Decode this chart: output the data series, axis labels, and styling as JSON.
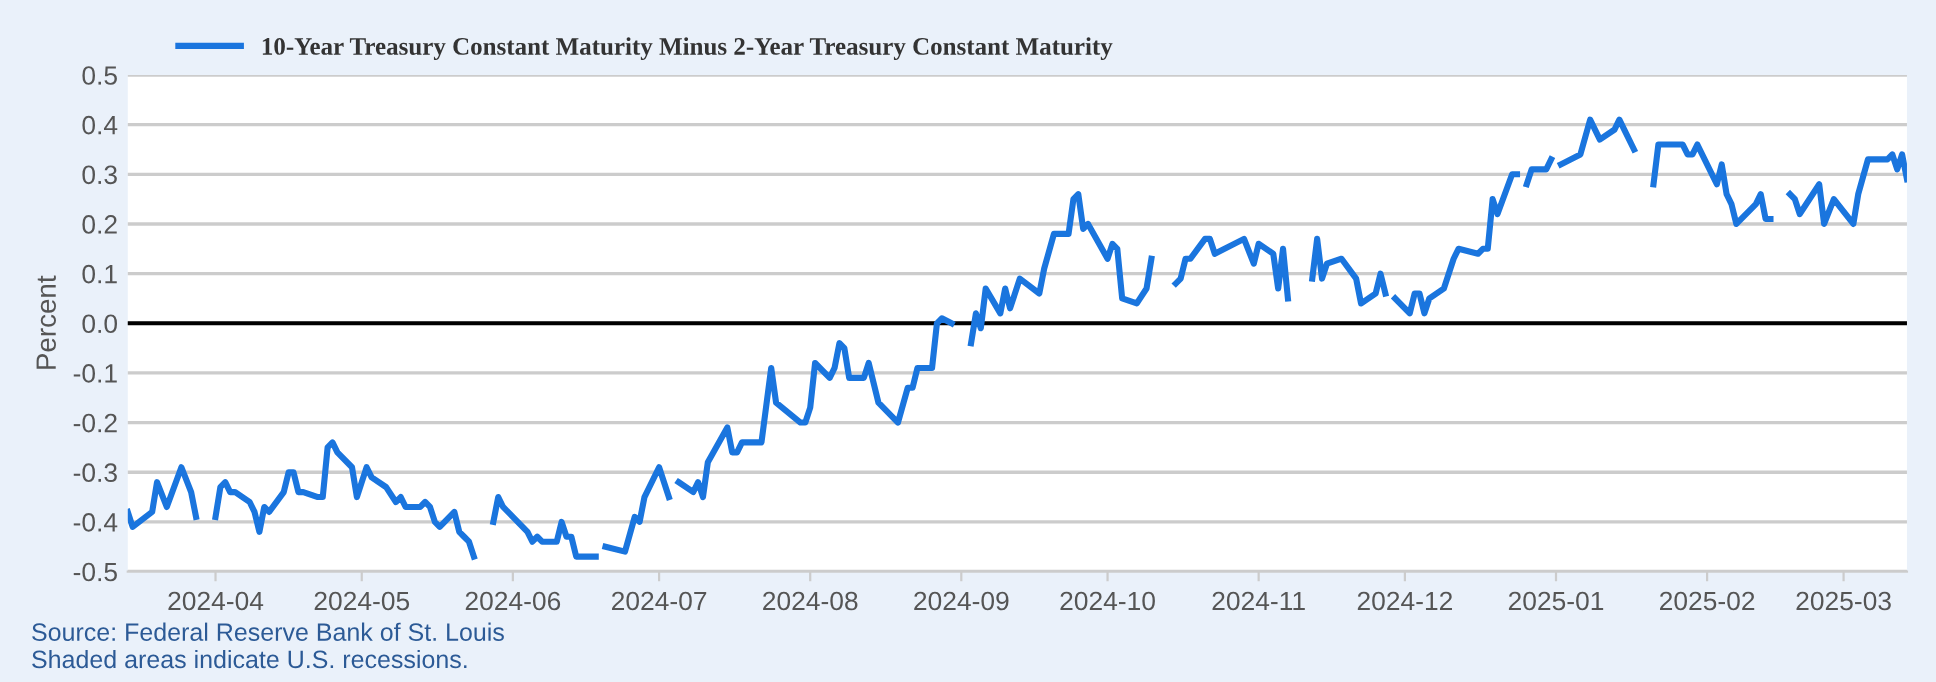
{
  "chart_data": {
    "type": "line",
    "ylabel": "Percent",
    "legend": "top left",
    "grid": "y",
    "line_style": "solid",
    "marker": "none",
    "xlim": [
      "2024-03-14",
      "2025-03-14"
    ],
    "xticks": [
      "2024-04",
      "2024-05",
      "2024-06",
      "2024-07",
      "2024-08",
      "2024-09",
      "2024-10",
      "2024-11",
      "2024-12",
      "2025-01",
      "2025-02",
      "2025-03"
    ],
    "ylim": [
      -0.5,
      0.5
    ],
    "yticks": [
      -0.5,
      -0.4,
      -0.3,
      -0.2,
      -0.1,
      {
        "value": 0,
        "label": "0.0"
      },
      0.1,
      0.2,
      0.3,
      0.4,
      0.5
    ],
    "ref_lines": [
      {
        "axis": "y",
        "value": 0,
        "color": "#000000"
      }
    ],
    "annotations": [
      "Source: Federal Reserve Bank of St. Louis",
      "Shaded areas indicate U.S. recessions."
    ],
    "series": [
      {
        "name": "10-Year Treasury Constant Maturity Minus 2-Year Treasury Constant Maturity",
        "color": "#1a75de",
        "x": [
          "2024-03-14",
          "2024-03-15",
          "2024-03-19",
          "2024-03-20",
          "2024-03-22",
          "2024-03-25",
          "2024-03-27",
          "2024-03-28",
          "2024-03-29",
          "2024-04-01",
          "2024-04-02",
          "2024-04-03",
          "2024-04-04",
          "2024-04-05",
          "2024-04-08",
          "2024-04-09",
          "2024-04-10",
          "2024-04-11",
          "2024-04-12",
          "2024-04-15",
          "2024-04-16",
          "2024-04-17",
          "2024-04-18",
          "2024-04-19",
          "2024-04-22",
          "2024-04-23",
          "2024-04-24",
          "2024-04-25",
          "2024-04-26",
          "2024-04-29",
          "2024-04-30",
          "2024-05-01",
          "2024-05-02",
          "2024-05-03",
          "2024-05-06",
          "2024-05-08",
          "2024-05-09",
          "2024-05-10",
          "2024-05-13",
          "2024-05-14",
          "2024-05-15",
          "2024-05-16",
          "2024-05-17",
          "2024-05-20",
          "2024-05-21",
          "2024-05-22",
          "2024-05-23",
          "2024-05-24",
          "2024-05-27",
          "2024-05-28",
          "2024-05-29",
          "2024-05-30",
          "2024-06-03",
          "2024-06-04",
          "2024-06-05",
          "2024-06-06",
          "2024-06-07",
          "2024-06-10",
          "2024-06-11",
          "2024-06-12",
          "2024-06-13",
          "2024-06-14",
          "2024-06-18",
          "2024-06-19",
          "2024-06-20",
          "2024-06-24",
          "2024-06-26",
          "2024-06-27",
          "2024-06-28",
          "2024-07-01",
          "2024-07-03",
          "2024-07-04",
          "2024-07-05",
          "2024-07-08",
          "2024-07-09",
          "2024-07-10",
          "2024-07-11",
          "2024-07-15",
          "2024-07-16",
          "2024-07-17",
          "2024-07-18",
          "2024-07-22",
          "2024-07-24",
          "2024-07-25",
          "2024-07-30",
          "2024-07-31",
          "2024-08-01",
          "2024-08-02",
          "2024-08-05",
          "2024-08-06",
          "2024-08-07",
          "2024-08-08",
          "2024-08-09",
          "2024-08-12",
          "2024-08-13",
          "2024-08-15",
          "2024-08-19",
          "2024-08-21",
          "2024-08-22",
          "2024-08-23",
          "2024-08-26",
          "2024-08-27",
          "2024-08-28",
          "2024-08-30",
          "2024-09-02",
          "2024-09-03",
          "2024-09-04",
          "2024-09-05",
          "2024-09-06",
          "2024-09-09",
          "2024-09-10",
          "2024-09-11",
          "2024-09-13",
          "2024-09-17",
          "2024-09-18",
          "2024-09-20",
          "2024-09-23",
          "2024-09-24",
          "2024-09-25",
          "2024-09-26",
          "2024-09-27",
          "2024-10-01",
          "2024-10-02",
          "2024-10-03",
          "2024-10-04",
          "2024-10-07",
          "2024-10-09",
          "2024-10-10",
          "2024-10-14",
          "2024-10-15",
          "2024-10-16",
          "2024-10-17",
          "2024-10-18",
          "2024-10-21",
          "2024-10-22",
          "2024-10-23",
          "2024-10-29",
          "2024-10-31",
          "2024-11-01",
          "2024-11-04",
          "2024-11-05",
          "2024-11-06",
          "2024-11-07",
          "2024-11-11",
          "2024-11-12",
          "2024-11-13",
          "2024-11-14",
          "2024-11-15",
          "2024-11-18",
          "2024-11-21",
          "2024-11-22",
          "2024-11-25",
          "2024-11-26",
          "2024-11-27",
          "2024-11-28",
          "2024-11-29",
          "2024-12-02",
          "2024-12-03",
          "2024-12-04",
          "2024-12-05",
          "2024-12-06",
          "2024-12-09",
          "2024-12-11",
          "2024-12-12",
          "2024-12-16",
          "2024-12-17",
          "2024-12-18",
          "2024-12-19",
          "2024-12-20",
          "2024-12-23",
          "2024-12-24",
          "2024-12-25",
          "2024-12-26",
          "2024-12-27",
          "2024-12-30",
          "2024-12-31",
          "2025-01-01",
          "2025-01-02",
          "2025-01-06",
          "2025-01-08",
          "2025-01-10",
          "2025-01-13",
          "2025-01-14",
          "2025-01-15",
          "2025-01-17",
          "2025-01-20",
          "2025-01-21",
          "2025-01-22",
          "2025-01-27",
          "2025-01-28",
          "2025-01-29",
          "2025-01-30",
          "2025-02-03",
          "2025-02-04",
          "2025-02-05",
          "2025-02-06",
          "2025-02-07",
          "2025-02-11",
          "2025-02-12",
          "2025-02-13",
          "2025-02-14",
          "2025-02-17",
          "2025-02-18",
          "2025-02-19",
          "2025-02-20",
          "2025-02-24",
          "2025-02-25",
          "2025-02-27",
          "2025-03-03",
          "2025-03-04",
          "2025-03-06",
          "2025-03-10",
          "2025-03-11",
          "2025-03-12",
          "2025-03-13",
          "2025-03-14"
        ],
        "values": [
          -0.38,
          -0.41,
          -0.38,
          -0.32,
          -0.37,
          -0.29,
          -0.34,
          -0.39,
          null,
          -0.39,
          -0.33,
          -0.32,
          -0.34,
          -0.34,
          -0.36,
          -0.38,
          -0.42,
          -0.37,
          -0.38,
          -0.34,
          -0.3,
          -0.3,
          -0.34,
          -0.34,
          -0.35,
          -0.35,
          -0.25,
          -0.24,
          -0.26,
          -0.29,
          -0.35,
          -0.32,
          -0.29,
          -0.31,
          -0.33,
          -0.36,
          -0.35,
          -0.37,
          -0.37,
          -0.36,
          -0.37,
          -0.4,
          -0.41,
          -0.38,
          -0.42,
          -0.43,
          -0.44,
          -0.47,
          null,
          -0.4,
          -0.35,
          -0.37,
          -0.41,
          -0.42,
          -0.44,
          -0.43,
          -0.44,
          -0.44,
          -0.4,
          -0.43,
          -0.43,
          -0.47,
          -0.47,
          null,
          -0.45,
          -0.46,
          -0.39,
          -0.4,
          -0.35,
          -0.29,
          -0.35,
          null,
          -0.32,
          -0.34,
          -0.32,
          -0.35,
          -0.28,
          -0.21,
          -0.26,
          -0.26,
          -0.24,
          -0.24,
          -0.09,
          -0.16,
          -0.2,
          -0.2,
          -0.17,
          -0.08,
          -0.11,
          -0.09,
          -0.04,
          -0.05,
          -0.11,
          -0.11,
          -0.08,
          -0.16,
          -0.2,
          -0.13,
          -0.13,
          -0.09,
          -0.09,
          0.0,
          0.01,
          0.0,
          null,
          -0.04,
          0.02,
          -0.01,
          0.07,
          0.02,
          0.07,
          0.03,
          0.09,
          0.06,
          0.11,
          0.18,
          0.18,
          0.25,
          0.26,
          0.19,
          0.2,
          0.13,
          0.16,
          0.15,
          0.05,
          0.04,
          0.07,
          0.13,
          null,
          0.08,
          0.09,
          0.13,
          0.13,
          0.17,
          0.17,
          0.14,
          0.17,
          0.12,
          0.16,
          0.14,
          0.07,
          0.15,
          0.05,
          null,
          0.09,
          0.17,
          0.09,
          0.12,
          0.13,
          0.09,
          0.04,
          0.06,
          0.1,
          0.06,
          null,
          0.05,
          0.02,
          0.06,
          0.06,
          0.02,
          0.05,
          0.07,
          0.13,
          0.15,
          0.14,
          0.15,
          0.15,
          0.25,
          0.22,
          0.3,
          0.3,
          null,
          0.28,
          0.31,
          0.31,
          0.33,
          null,
          0.32,
          0.34,
          0.41,
          0.37,
          0.39,
          0.41,
          0.39,
          0.35,
          null,
          0.28,
          0.36,
          0.36,
          0.34,
          0.34,
          0.36,
          0.28,
          0.32,
          0.26,
          0.24,
          0.2,
          0.24,
          0.26,
          0.21,
          0.21,
          null,
          0.26,
          0.25,
          0.22,
          0.28,
          0.2,
          0.25,
          0.2,
          0.26,
          0.33,
          0.33,
          0.34,
          0.31,
          0.34,
          0.29
        ]
      }
    ]
  }
}
